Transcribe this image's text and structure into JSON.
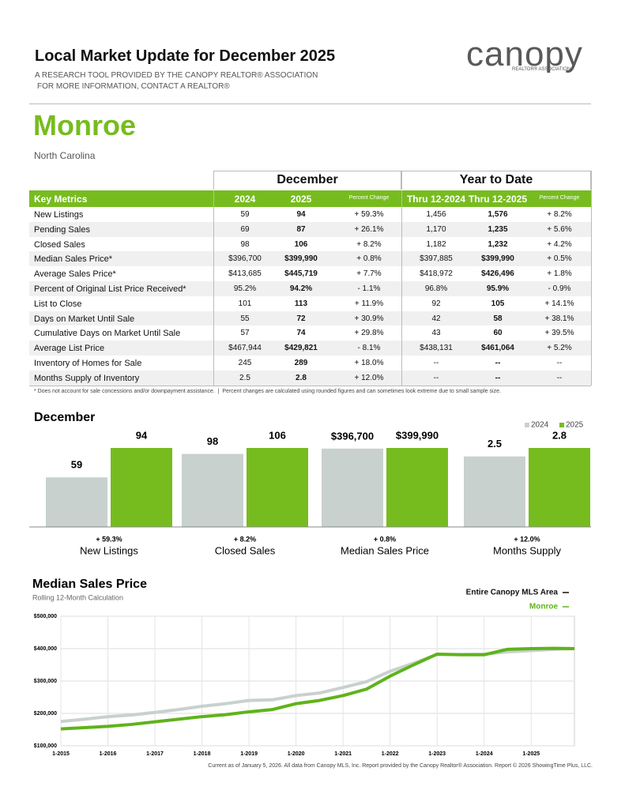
{
  "header": {
    "title": "Local Market Update for December 2025",
    "subtitle_lines": [
      "A RESEARCH TOOL PROVIDED BY THE CANOPY REALTOR® ASSOCIATION",
      "FOR MORE INFORMATION, CONTACT A REALTOR®"
    ],
    "logo": "canopy",
    "logo_sub": "REALTOR® ASSOCIATION"
  },
  "area": {
    "name": "Monroe",
    "state": "North Carolina"
  },
  "table": {
    "groups": [
      "December",
      "Year to Date"
    ],
    "columns": [
      "Key Metrics",
      "2024",
      "2025",
      "Percent Change",
      "Thru 12-2024",
      "Thru 12-2025",
      "Percent Change"
    ],
    "rows": [
      [
        "New Listings",
        "59",
        "94",
        "+ 59.3%",
        "1,456",
        "1,576",
        "+ 8.2%"
      ],
      [
        "Pending Sales",
        "69",
        "87",
        "+ 26.1%",
        "1,170",
        "1,235",
        "+ 5.6%"
      ],
      [
        "Closed Sales",
        "98",
        "106",
        "+ 8.2%",
        "1,182",
        "1,232",
        "+ 4.2%"
      ],
      [
        "Median Sales Price*",
        "$396,700",
        "$399,990",
        "+ 0.8%",
        "$397,885",
        "$399,990",
        "+ 0.5%"
      ],
      [
        "Average Sales Price*",
        "$413,685",
        "$445,719",
        "+ 7.7%",
        "$418,972",
        "$426,496",
        "+ 1.8%"
      ],
      [
        "Percent of Original List Price Received*",
        "95.2%",
        "94.2%",
        "- 1.1%",
        "96.8%",
        "95.9%",
        "- 0.9%"
      ],
      [
        "List to Close",
        "101",
        "113",
        "+ 11.9%",
        "92",
        "105",
        "+ 14.1%"
      ],
      [
        "Days on Market Until Sale",
        "55",
        "72",
        "+ 30.9%",
        "42",
        "58",
        "+ 38.1%"
      ],
      [
        "Cumulative Days on Market Until Sale",
        "57",
        "74",
        "+ 29.8%",
        "43",
        "60",
        "+ 39.5%"
      ],
      [
        "Average List Price",
        "$467,944",
        "$429,821",
        "- 8.1%",
        "$438,131",
        "$461,064",
        "+ 5.2%"
      ],
      [
        "Inventory of Homes for Sale",
        "245",
        "289",
        "+ 18.0%",
        "--",
        "--",
        "--"
      ],
      [
        "Months Supply of Inventory",
        "2.5",
        "2.8",
        "+ 12.0%",
        "--",
        "--",
        "--"
      ]
    ]
  },
  "footnote": "* Does not account for sale concessions and/or downpayment assistance.  |  Percent changes are calculated using rounded figures and can sometimes look extreme due to small sample size.",
  "chart_data": [
    {
      "type": "bar",
      "title": "December",
      "categories": [
        "New Listings",
        "Closed Sales",
        "Median Sales Price",
        "Months Supply"
      ],
      "changes": [
        "+ 59.3%",
        "+ 8.2%",
        "+ 0.8%",
        "+ 12.0%"
      ],
      "series": [
        {
          "name": "2024",
          "color": "#c9d1cf",
          "values": [
            59,
            98,
            396700,
            2.5
          ],
          "value_labels": [
            "59",
            "98",
            "$396,700",
            "2.5"
          ]
        },
        {
          "name": "2025",
          "color": "#77bc1f",
          "values": [
            94,
            106,
            399990,
            2.8
          ],
          "value_labels": [
            "94",
            "106",
            "$399,990",
            "2.8"
          ]
        }
      ]
    },
    {
      "type": "line",
      "title": "Median Sales Price",
      "subtitle": "Rolling 12-Month Calculation",
      "x": [
        2015,
        2015.5,
        2016,
        2016.5,
        2017,
        2017.5,
        2018,
        2018.5,
        2019,
        2019.5,
        2020,
        2020.5,
        2021,
        2021.5,
        2022,
        2022.5,
        2023,
        2023.5,
        2024,
        2024.5,
        2025,
        2025.5,
        2025.92
      ],
      "series": [
        {
          "name": "Entire Canopy MLS Area",
          "color": "#c9d1cf",
          "values": [
            175000,
            182000,
            190000,
            195000,
            203000,
            212000,
            222000,
            230000,
            240000,
            242000,
            255000,
            263000,
            280000,
            298000,
            330000,
            355000,
            382000,
            382000,
            383000,
            390000,
            394000,
            398000,
            400000
          ]
        },
        {
          "name": "Monroe",
          "color": "#5fb31a",
          "values": [
            152000,
            156000,
            160000,
            166000,
            174000,
            182000,
            190000,
            196000,
            205000,
            212000,
            230000,
            240000,
            255000,
            275000,
            315000,
            350000,
            383000,
            381000,
            381000,
            398000,
            400000,
            401000,
            400000
          ]
        }
      ],
      "xlim": [
        2015,
        2025.92
      ],
      "xticks": [
        {
          "value": 2015,
          "label": "1-2015"
        },
        {
          "value": 2016,
          "label": "1-2016"
        },
        {
          "value": 2017,
          "label": "1-2017"
        },
        {
          "value": 2018,
          "label": "1-2018"
        },
        {
          "value": 2019,
          "label": "1-2019"
        },
        {
          "value": 2020,
          "label": "1-2020"
        },
        {
          "value": 2021,
          "label": "1-2021"
        },
        {
          "value": 2022,
          "label": "1-2022"
        },
        {
          "value": 2023,
          "label": "1-2023"
        },
        {
          "value": 2024,
          "label": "1-2024"
        },
        {
          "value": 2025,
          "label": "1-2025"
        }
      ],
      "ylim": [
        100000,
        500000
      ],
      "yticks": [
        {
          "value": 100000,
          "label": "$100,000"
        },
        {
          "value": 200000,
          "label": "$200,000"
        },
        {
          "value": 300000,
          "label": "$300,000"
        },
        {
          "value": 400000,
          "label": "$400,000"
        },
        {
          "value": 500000,
          "label": "$500,000"
        }
      ],
      "grid": true
    }
  ],
  "footer": "Current as of January 5, 2026. All data from Canopy MLS, Inc. Report provided by the Canopy Realtor® Association. Report © 2026 ShowingTime Plus, LLC."
}
